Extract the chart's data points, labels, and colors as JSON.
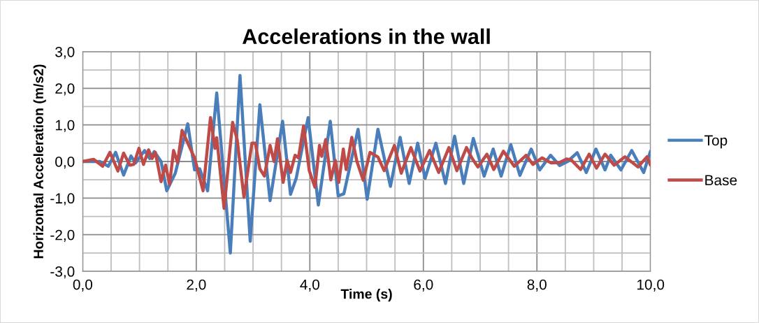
{
  "chart_data": {
    "type": "line",
    "title": "Accelerations in the wall",
    "xlabel": "Time (s)",
    "ylabel": "Horizontal Acceleration (m/s2)",
    "xlim": [
      0,
      10
    ],
    "ylim": [
      -3,
      3
    ],
    "xticks": [
      {
        "value": 0,
        "label": "0,0"
      },
      {
        "value": 0.5,
        "label": null
      },
      {
        "value": 1,
        "label": null
      },
      {
        "value": 1.5,
        "label": null
      },
      {
        "value": 2,
        "label": "2,0"
      },
      {
        "value": 2.5,
        "label": null
      },
      {
        "value": 3,
        "label": null
      },
      {
        "value": 3.5,
        "label": null
      },
      {
        "value": 4,
        "label": "4,0"
      },
      {
        "value": 4.5,
        "label": null
      },
      {
        "value": 5,
        "label": null
      },
      {
        "value": 5.5,
        "label": null
      },
      {
        "value": 6,
        "label": "6,0"
      },
      {
        "value": 6.5,
        "label": null
      },
      {
        "value": 7,
        "label": null
      },
      {
        "value": 7.5,
        "label": null
      },
      {
        "value": 8,
        "label": "8,0"
      },
      {
        "value": 8.5,
        "label": null
      },
      {
        "value": 9,
        "label": null
      },
      {
        "value": 9.5,
        "label": null
      },
      {
        "value": 10,
        "label": "10,0"
      }
    ],
    "yticks": [
      {
        "value": -3,
        "label": "-3,0"
      },
      {
        "value": -2.5,
        "label": null
      },
      {
        "value": -2,
        "label": "-2,0"
      },
      {
        "value": -1.5,
        "label": null
      },
      {
        "value": -1,
        "label": "-1,0"
      },
      {
        "value": -0.5,
        "label": null
      },
      {
        "value": 0,
        "label": "0,0"
      },
      {
        "value": 0.5,
        "label": null
      },
      {
        "value": 1,
        "label": "1,0"
      },
      {
        "value": 1.5,
        "label": null
      },
      {
        "value": 2,
        "label": "2,0"
      },
      {
        "value": 2.5,
        "label": null
      },
      {
        "value": 3,
        "label": "3,0"
      }
    ],
    "grid": true,
    "legend": "right",
    "marker": "none",
    "line_style": "solid",
    "series": [
      {
        "name": "Top",
        "color": "#4a7ebb",
        "x": [
          0,
          0.3,
          0.45,
          0.58,
          0.72,
          0.85,
          0.93,
          1.09,
          1.18,
          1.26,
          1.38,
          1.48,
          1.63,
          1.85,
          1.97,
          2.06,
          2.2,
          2.36,
          2.6,
          2.77,
          2.95,
          3.12,
          3.3,
          3.52,
          3.66,
          3.76,
          3.97,
          4.15,
          4.36,
          4.5,
          4.6,
          4.85,
          5.01,
          5.2,
          5.42,
          5.59,
          5.75,
          5.9,
          6.03,
          6.22,
          6.39,
          6.55,
          6.71,
          6.88,
          7.07,
          7.23,
          7.37,
          7.54,
          7.7,
          7.9,
          8.05,
          8.24,
          8.4,
          8.54,
          8.71,
          8.87,
          9.04,
          9.2,
          9.3,
          9.48,
          9.67,
          9.88,
          10
        ],
        "values": [
          0,
          0,
          -0.13,
          0.25,
          -0.37,
          0.15,
          -0.04,
          0.3,
          0.08,
          0.27,
          0,
          -0.8,
          -0.32,
          1.03,
          -0.23,
          -0.2,
          -0.8,
          1.87,
          -2.5,
          2.35,
          -2.18,
          1.55,
          -1.07,
          1.1,
          -0.9,
          -0.46,
          1.2,
          -1.19,
          1.1,
          -0.94,
          -0.88,
          0.88,
          -1.03,
          0.88,
          -0.68,
          0.66,
          -0.6,
          0.5,
          -0.46,
          0.5,
          -0.6,
          0.69,
          -0.6,
          0.63,
          -0.4,
          0.34,
          -0.4,
          0.46,
          -0.38,
          0.34,
          -0.23,
          0.17,
          -0.11,
          0,
          0.24,
          -0.3,
          0.34,
          -0.23,
          0.17,
          -0.23,
          0.3,
          -0.3,
          0.28
        ]
      },
      {
        "name": "Base",
        "color": "#be4b48",
        "x": [
          0,
          0.19,
          0.35,
          0.48,
          0.62,
          0.72,
          0.83,
          0.9,
          0.99,
          1.07,
          1.16,
          1.22,
          1.28,
          1.38,
          1.46,
          1.53,
          1.6,
          1.67,
          1.75,
          1.91,
          1.97,
          2.12,
          2.25,
          2.33,
          2.36,
          2.49,
          2.64,
          2.72,
          2.84,
          2.98,
          3.04,
          3.12,
          3.2,
          3.3,
          3.37,
          3.43,
          3.53,
          3.6,
          3.66,
          3.74,
          3.8,
          3.89,
          3.99,
          4.09,
          4.17,
          4.21,
          4.28,
          4.37,
          4.45,
          4.51,
          4.59,
          4.64,
          4.74,
          4.83,
          4.94,
          5.06,
          5.2,
          5.31,
          5.49,
          5.61,
          5.78,
          5.94,
          6.11,
          6.27,
          6.45,
          6.59,
          6.76,
          6.86,
          6.96,
          7.12,
          7.24,
          7.41,
          7.6,
          7.81,
          7.93,
          8.09,
          8.25,
          8.4,
          8.52,
          8.6,
          8.77,
          8.92,
          9.05,
          9.2,
          9.36,
          9.55,
          9.78,
          9.94,
          10
        ],
        "values": [
          0,
          0.06,
          -0.13,
          0.25,
          -0.26,
          0.23,
          -0.1,
          -0.08,
          0.36,
          -0.08,
          0.32,
          0.08,
          0.25,
          -0.55,
          -0.1,
          -0.62,
          0.3,
          -0.03,
          0.85,
          0.3,
          0.1,
          -0.8,
          1.2,
          0.36,
          0.65,
          -1.28,
          1.07,
          0.6,
          -0.98,
          0.5,
          0.5,
          -0.2,
          -0.4,
          0.44,
          0,
          0.62,
          -0.57,
          0.03,
          -0.3,
          0.17,
          0.1,
          0.97,
          -0.25,
          -0.7,
          0.44,
          0.14,
          0.6,
          -0.5,
          0.03,
          -0.57,
          0.34,
          -0.22,
          0.66,
          0,
          -0.51,
          0.25,
          0.12,
          -0.25,
          0.44,
          -0.32,
          0.38,
          -0.26,
          0.3,
          -0.3,
          0.38,
          -0.25,
          0.38,
          0.08,
          -0.15,
          0.2,
          -0.22,
          0.28,
          -0.13,
          0.17,
          -0.08,
          0.1,
          -0.04,
          -0.03,
          0.07,
          0.05,
          -0.22,
          0.2,
          -0.18,
          0.2,
          -0.1,
          0.13,
          -0.15,
          0.13,
          -0.1
        ]
      }
    ]
  }
}
